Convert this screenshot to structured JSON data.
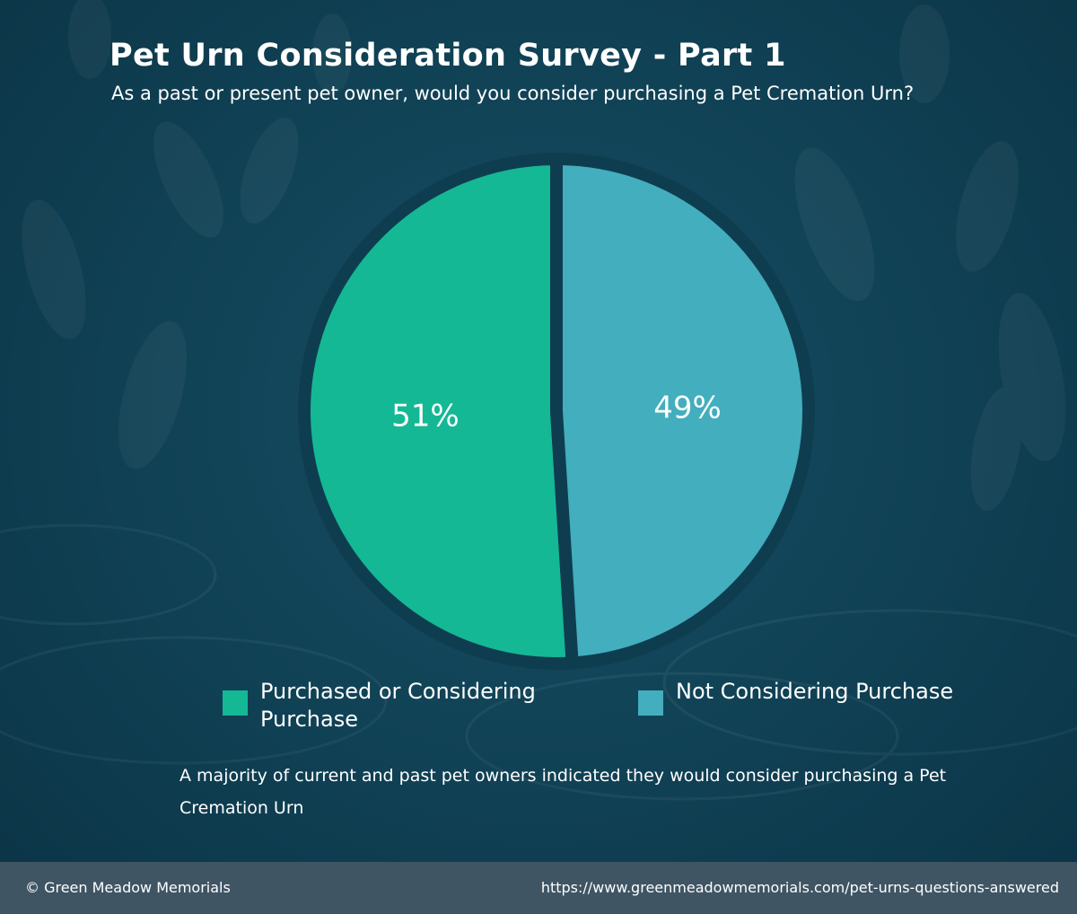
{
  "title": "Pet Urn Consideration Survey - Part 1",
  "subtitle": "As a past or present pet owner, would you consider purchasing a Pet Cremation Urn?",
  "chart_data": {
    "type": "pie",
    "slices": [
      {
        "label": "Purchased or Considering Purchase",
        "value": 51,
        "display": "51%",
        "color": "#14b894"
      },
      {
        "label": "Not Considering Purchase",
        "value": 49,
        "display": "49%",
        "color": "#43aebd"
      }
    ],
    "legend_position": "bottom"
  },
  "legend": {
    "items": [
      {
        "label": "Purchased or Considering Purchase",
        "color": "#14b894"
      },
      {
        "label": "Not Considering Purchase",
        "color": "#43aebd"
      }
    ]
  },
  "note": "A majority of current and past pet owners indicated they would consider purchasing a Pet Cremation Urn",
  "footer": {
    "copyright": "© Green Meadow Memorials",
    "url": "https://www.greenmeadowmemorials.com/pet-urns-questions-answered"
  }
}
